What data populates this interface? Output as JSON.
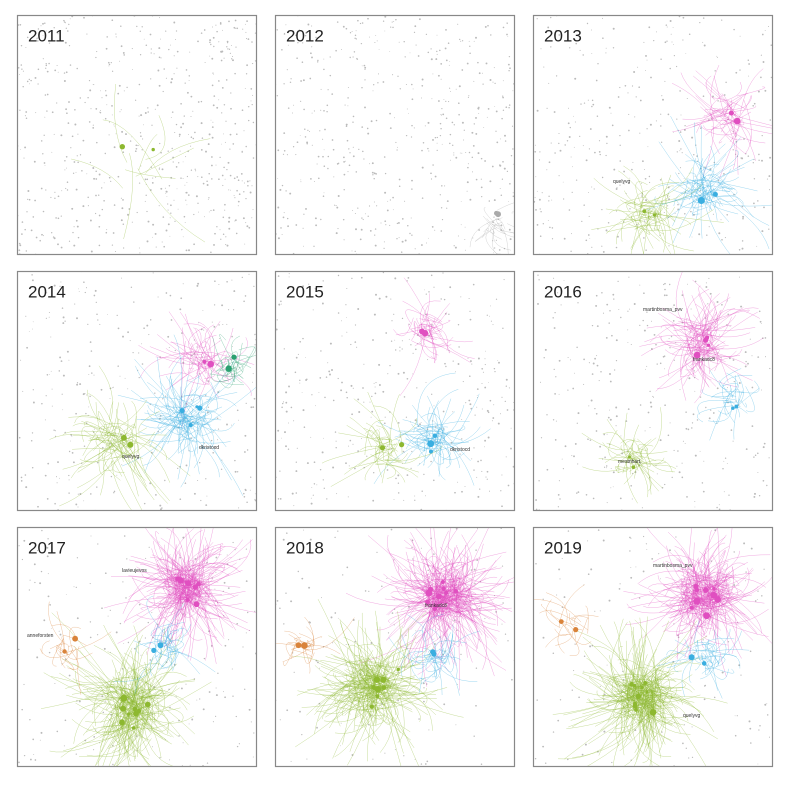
{
  "panels": [
    {
      "year": "2011",
      "labels": []
    },
    {
      "year": "2012",
      "labels": []
    },
    {
      "year": "2013",
      "labels": [
        "quelyvg"
      ]
    },
    {
      "year": "2014",
      "labels": [
        "quelyvg",
        "dkristocd"
      ]
    },
    {
      "year": "2015",
      "labels": [
        "dkristocd"
      ]
    },
    {
      "year": "2016",
      "labels": [
        "martinbosma_pvv",
        "frankadc8",
        "mestnhart"
      ]
    },
    {
      "year": "2017",
      "labels": [
        "lavieujevos",
        "anneforsten"
      ]
    },
    {
      "year": "2018",
      "labels": [
        "frankadc8"
      ]
    },
    {
      "year": "2019",
      "labels": [
        "martinbosma_pvv",
        "quelyvg"
      ]
    }
  ]
}
